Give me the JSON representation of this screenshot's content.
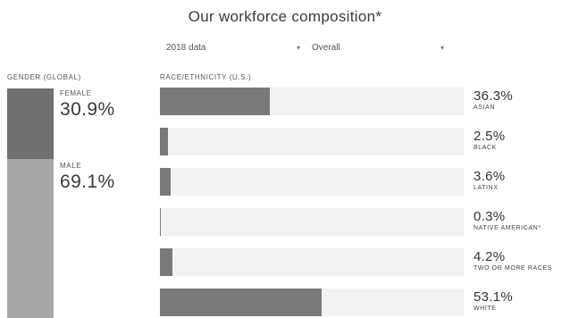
{
  "title": "Our workforce composition*",
  "filters": {
    "year": {
      "selected": "2018 data"
    },
    "view": {
      "selected": "Overall"
    }
  },
  "gender": {
    "heading": "GENDER (GLOBAL)",
    "items": [
      {
        "label": "FEMALE",
        "value": "30.9%",
        "fraction": 0.309
      },
      {
        "label": "MALE",
        "value": "69.1%",
        "fraction": 0.691
      }
    ]
  },
  "race": {
    "heading": "RACE/ETHNICITY (U.S.)",
    "items": [
      {
        "label": "ASIAN",
        "value": "36.3%",
        "fraction": 0.363
      },
      {
        "label": "BLACK",
        "value": "2.5%",
        "fraction": 0.025
      },
      {
        "label": "LATINX",
        "value": "3.6%",
        "fraction": 0.036
      },
      {
        "label": "NATIVE AMERICAN*",
        "value": "0.3%",
        "fraction": 0.003
      },
      {
        "label": "TWO OR MORE RACES",
        "value": "4.2%",
        "fraction": 0.042
      },
      {
        "label": "WHITE",
        "value": "53.1%",
        "fraction": 0.531
      }
    ]
  },
  "colors": {
    "female_bar": "#707070",
    "male_bar": "#a8a8a8",
    "race_fill": "#7a7a7a",
    "race_track": "#f2f2f2"
  },
  "icons": {
    "dropdown": "chevron-down-icon"
  }
}
